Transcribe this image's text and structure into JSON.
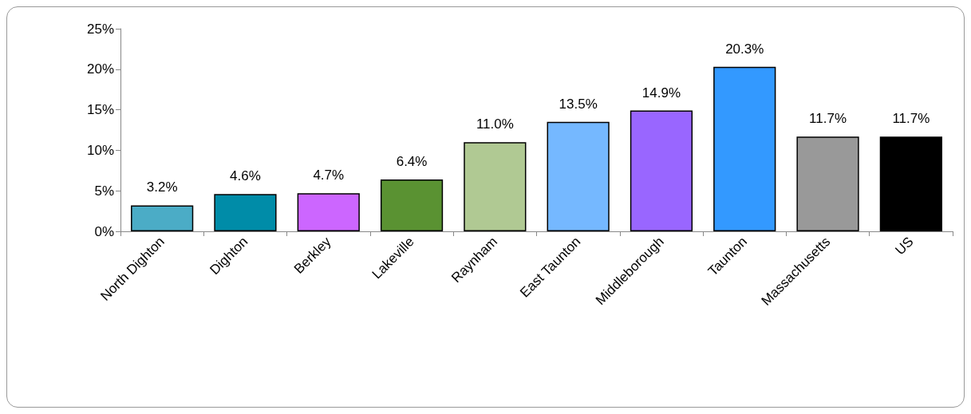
{
  "chart_data": {
    "type": "bar",
    "categories": [
      "North Dighton",
      "Dighton",
      "Berkley",
      "Lakeville",
      "Raynham",
      "East Taunton",
      "Middleborough",
      "Taunton",
      "Massachusetts",
      "US"
    ],
    "values": [
      3.2,
      4.6,
      4.7,
      6.4,
      11.0,
      13.5,
      14.9,
      20.3,
      11.7,
      11.7
    ],
    "value_labels": [
      "3.2%",
      "4.6%",
      "4.7%",
      "6.4%",
      "11.0%",
      "13.5%",
      "14.9%",
      "20.3%",
      "11.7%",
      "11.7%"
    ],
    "colors": [
      "#4bacc6",
      "#008ca8",
      "#cc66ff",
      "#5a9232",
      "#b0c993",
      "#75b8ff",
      "#9966ff",
      "#3399ff",
      "#999999",
      "#000000"
    ],
    "ylim": [
      0,
      25
    ],
    "yticks": [
      {
        "value": 0,
        "label": "0%"
      },
      {
        "value": 5,
        "label": "5%"
      },
      {
        "value": 10,
        "label": "10%"
      },
      {
        "value": 15,
        "label": "15%"
      },
      {
        "value": 20,
        "label": "20%"
      },
      {
        "value": 25,
        "label": "25%"
      }
    ],
    "grid": false
  }
}
